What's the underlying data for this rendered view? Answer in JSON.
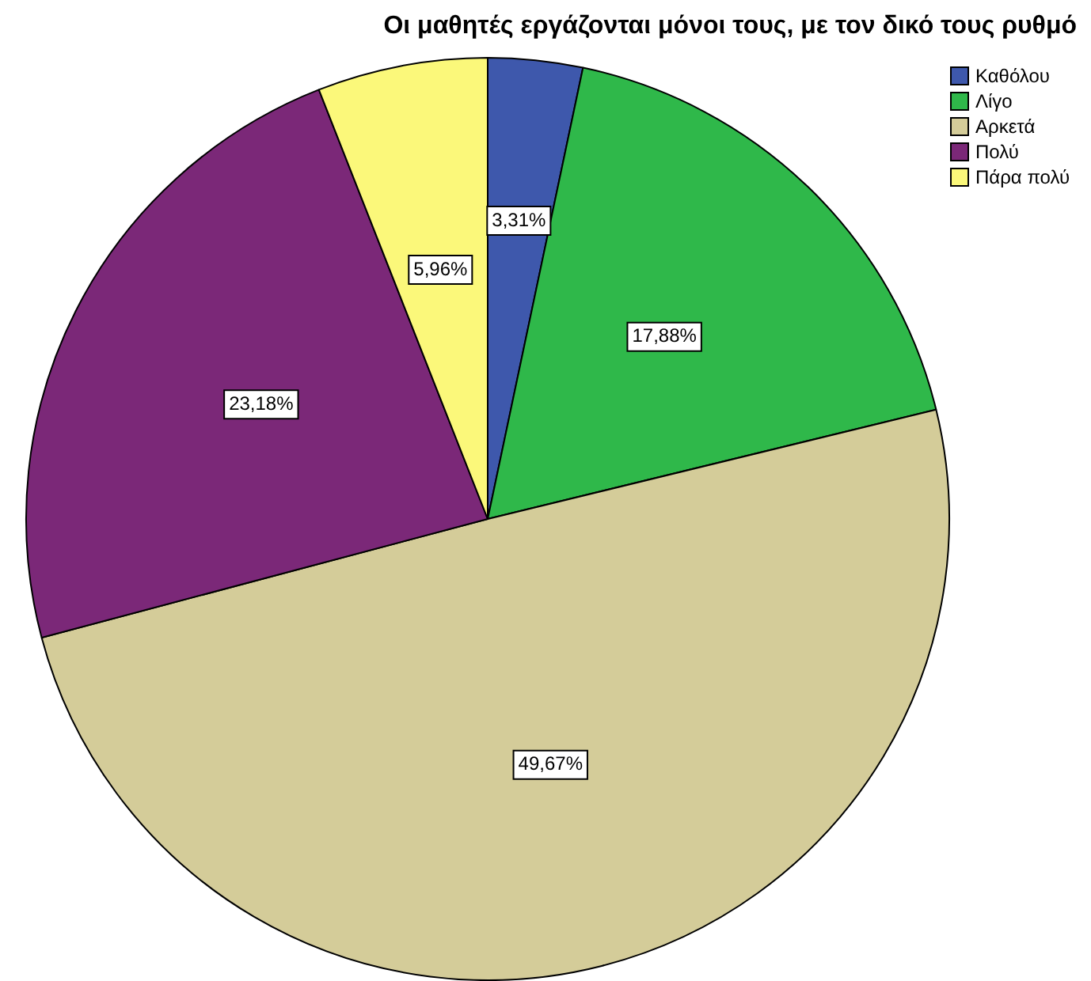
{
  "chart_data": {
    "type": "pie",
    "title": "Οι μαθητές εργάζονται μόνοι τους, με τον δικό τους ρυθμό",
    "categories": [
      "Καθόλου",
      "Λίγο",
      "Αρκετά",
      "Πολύ",
      "Πάρα πολύ"
    ],
    "values": [
      3.31,
      17.88,
      49.67,
      23.18,
      5.96
    ],
    "colors": [
      "#3e58ac",
      "#2fb84a",
      "#d4cc99",
      "#7b2878",
      "#fbf87a"
    ],
    "value_labels": [
      "3,31%",
      "17,88%",
      "49,67%",
      "23,18%",
      "5,96%"
    ],
    "legend": "top right"
  }
}
